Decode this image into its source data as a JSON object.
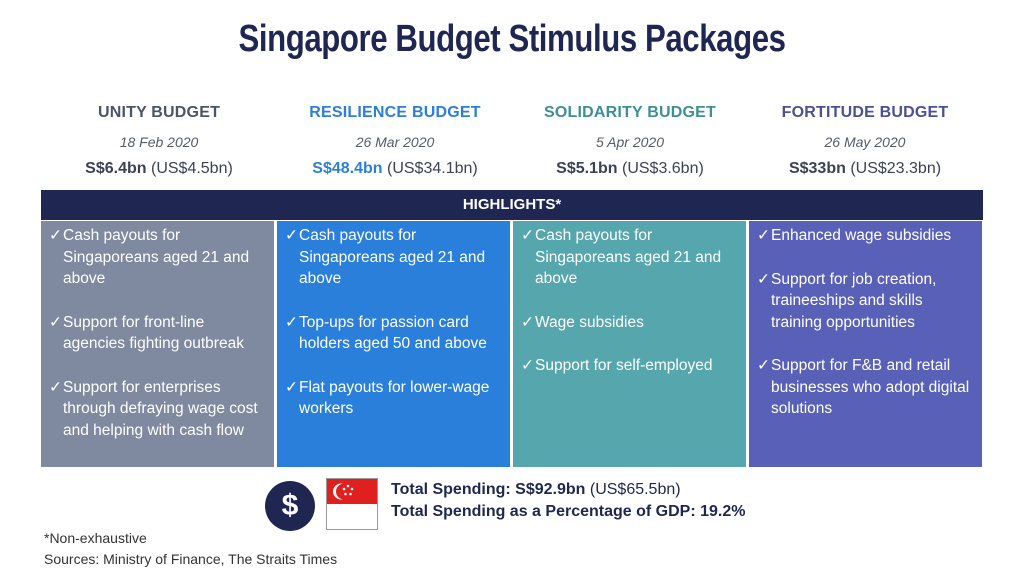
{
  "title": "Singapore Budget Stimulus Packages",
  "colors": {
    "navy": "#1f2651",
    "unity": "#7f8aa0",
    "resilience": "#2a7fdb",
    "solidarity": "#56a6ad",
    "fortitude": "#5960b8"
  },
  "budgets": [
    {
      "name": "UNITY BUDGET",
      "date": "18 Feb 2020",
      "amount": "S$6.4bn",
      "usd": "(US$4.5bn)",
      "name_color": "#4a5568",
      "items": [
        "Cash payouts for Singaporeans aged 21 and above",
        "Support for front-line agencies fighting outbreak",
        "Support for enterprises through defraying wage cost and helping with cash flow"
      ]
    },
    {
      "name": "RESILIENCE BUDGET",
      "date": "26 Mar 2020",
      "amount": "S$48.4bn",
      "usd": "(US$34.1bn)",
      "name_color": "#2a7fdb",
      "items": [
        "Cash payouts for Singaporeans aged 21 and above",
        "Top-ups for passion card holders aged 50 and above",
        "Flat payouts for lower-wage workers"
      ]
    },
    {
      "name": "SOLIDARITY BUDGET",
      "date": "5 Apr 2020",
      "amount": "S$5.1bn",
      "usd": "(US$3.6bn)",
      "name_color": "#3d8f95",
      "items": [
        "Cash payouts for Singaporeans aged 21 and above",
        "Wage subsidies",
        "Support for self-employed"
      ]
    },
    {
      "name": "FORTITUDE BUDGET",
      "date": "26 May 2020",
      "amount": "S$33bn",
      "usd": "(US$23.3bn)",
      "name_color": "#4a5096",
      "items": [
        "Enhanced wage subsidies",
        "Support for job creation, traineeships and skills training opportunities",
        "Support for F&B and retail businesses who adopt digital solutions"
      ]
    }
  ],
  "highlights_label": "HIGHLIGHTS*",
  "checkmark": "✓",
  "coin_symbol": "$",
  "total": {
    "spending_label": "Total Spending:",
    "spending_sgd": "S$92.9bn",
    "spending_usd": "(US$65.5bn)",
    "gdp_label": "Total Spending as a Percentage of GDP:",
    "gdp_value": "19.2%"
  },
  "footnote": "*Non-exhaustive",
  "sources": "Sources: Ministry of Finance, The Straits Times"
}
